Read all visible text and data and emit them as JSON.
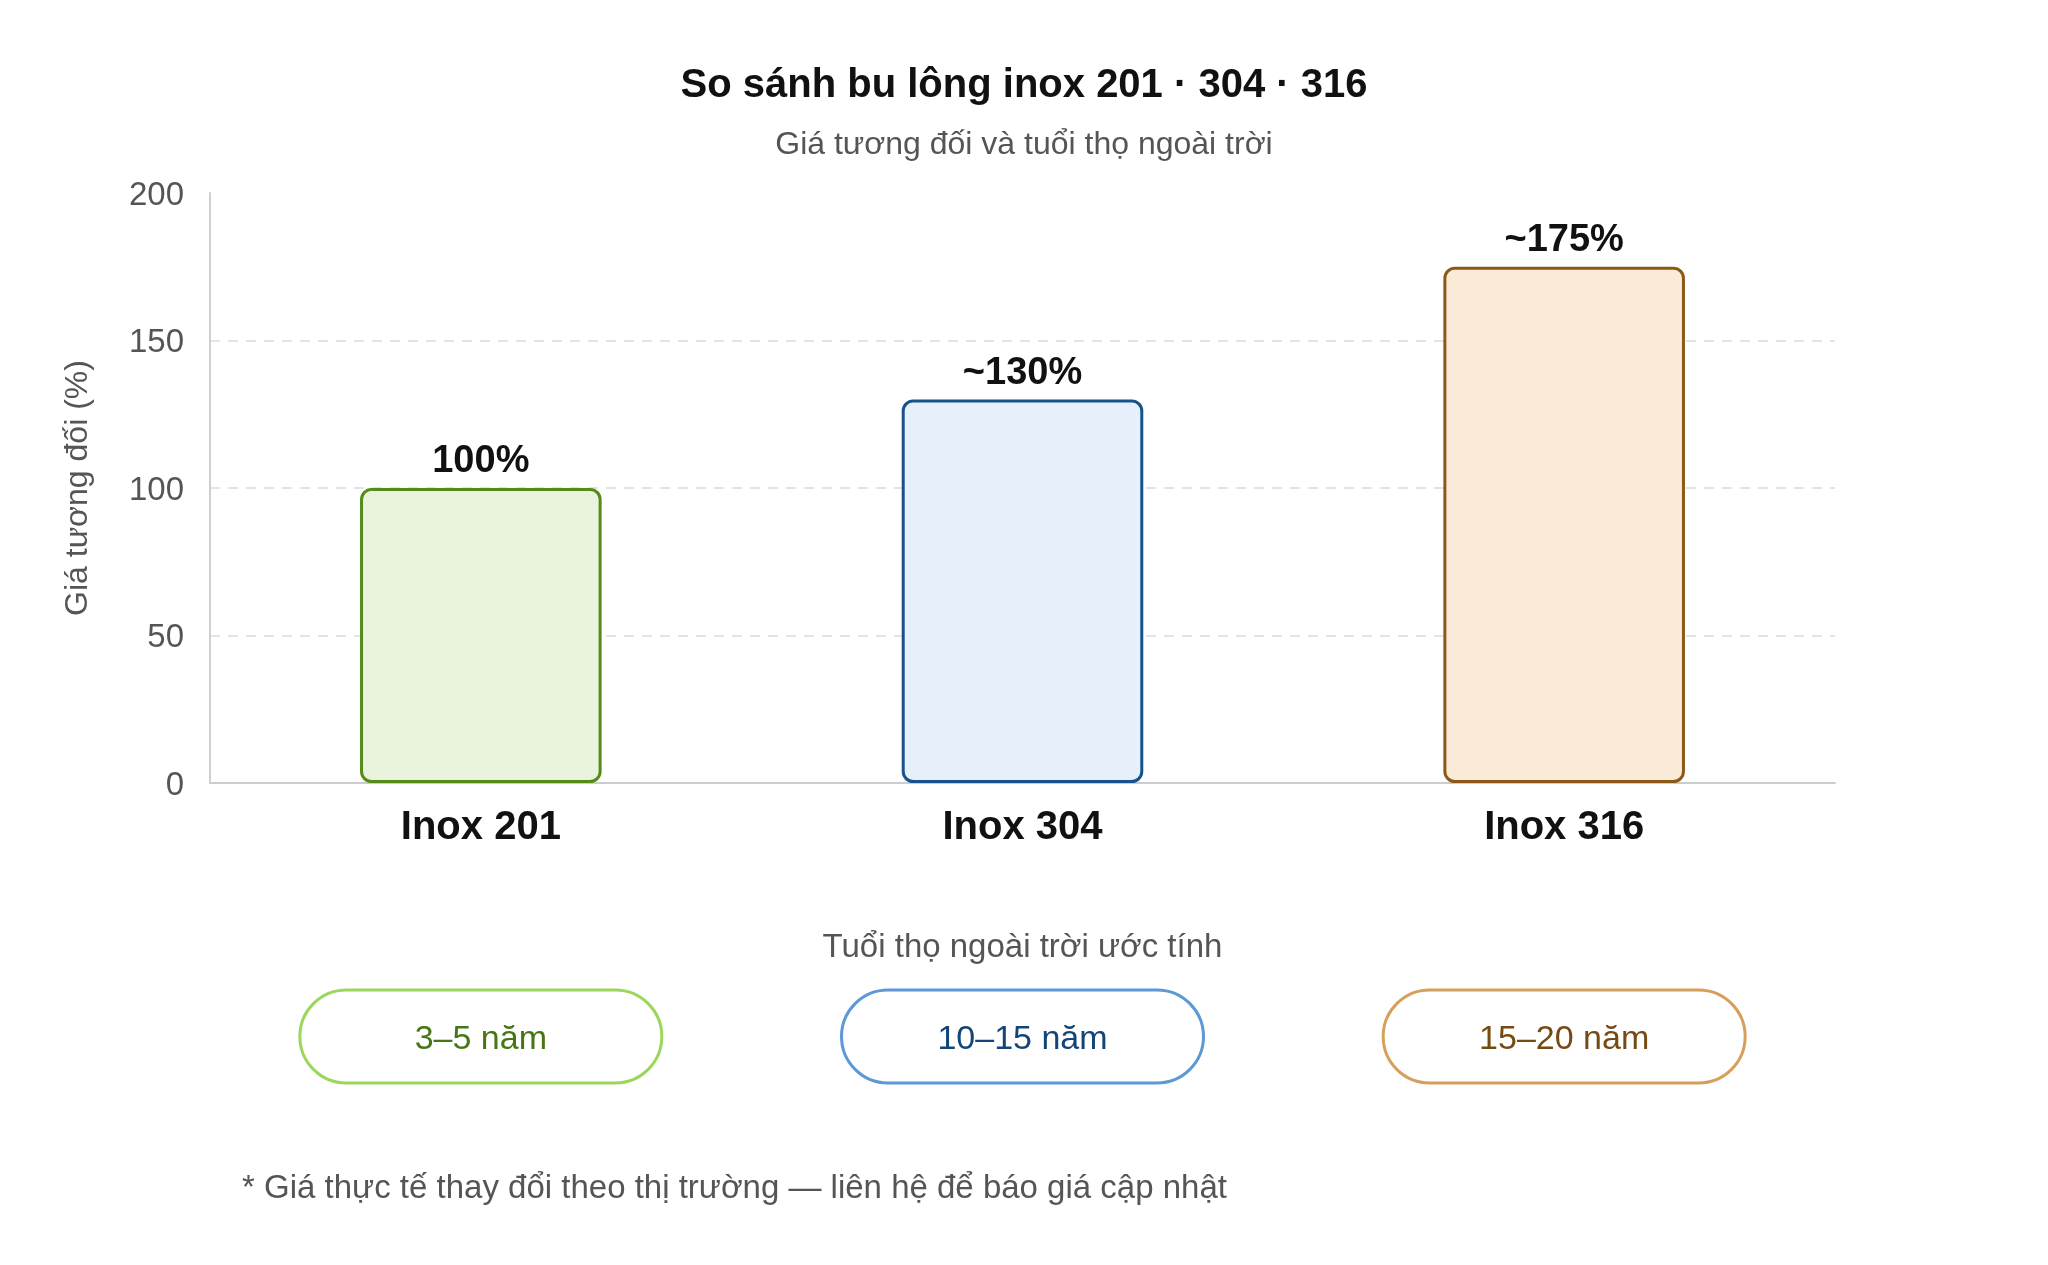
{
  "chart_data": {
    "type": "bar",
    "title": "So sánh bu lông inox 201 · 304 · 316",
    "subtitle": "Giá tương đối và tuổi thọ ngoài trời",
    "ylabel": "Giá tương đối (%)",
    "categories": [
      "Inox 201",
      "Inox 304",
      "Inox 316"
    ],
    "values": [
      100,
      130,
      175
    ],
    "value_labels": [
      "100%",
      "~130%",
      "~175%"
    ],
    "colors": [
      "#e9f3de",
      "#e6f0fa",
      "#faebd8"
    ],
    "ylim": [
      0,
      200
    ],
    "yticks": [
      0,
      50,
      100,
      150,
      200
    ],
    "grid": "y",
    "annotations": [
      "Tuổi thọ ngoài trời ước tính",
      "3–5 năm",
      "10–15 năm",
      "15–20 năm",
      "* Giá thực tế thay đổi theo thị trường — liên hệ để báo giá cập nhật"
    ]
  }
}
